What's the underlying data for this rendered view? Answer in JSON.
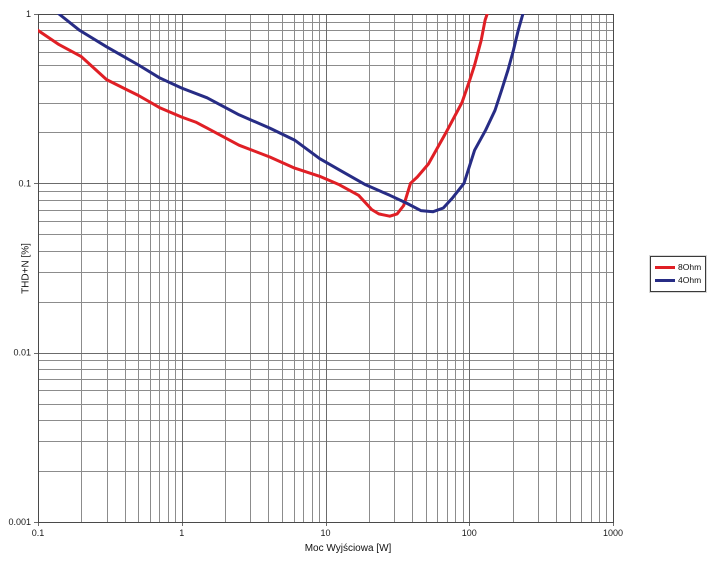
{
  "chart_data": {
    "type": "line",
    "title": "",
    "xlabel": "Moc Wyjściowa [W]",
    "ylabel": "THD+N [%]",
    "x_scale": "log",
    "y_scale": "log",
    "xlim": [
      0.1,
      1000
    ],
    "ylim": [
      0.001,
      1
    ],
    "grid": "major and minor log gridlines, gray, on",
    "legend_position": "right-center",
    "x_ticks": [
      {
        "v": 0.1,
        "label": "0.1"
      },
      {
        "v": 1,
        "label": "1"
      },
      {
        "v": 10,
        "label": "10"
      },
      {
        "v": 100,
        "label": "100"
      },
      {
        "v": 1000,
        "label": "1000"
      }
    ],
    "y_ticks": [
      {
        "v": 1,
        "label": "1"
      },
      {
        "v": 0.1,
        "label": "0.1"
      },
      {
        "v": 0.01,
        "label": "0.01"
      },
      {
        "v": 0.001,
        "label": "0.001"
      }
    ],
    "series": [
      {
        "name": "8Ohm",
        "color": "#e01f25",
        "points": [
          [
            0.1,
            0.8
          ],
          [
            0.14,
            0.66
          ],
          [
            0.2,
            0.56
          ],
          [
            0.3,
            0.41
          ],
          [
            0.5,
            0.33
          ],
          [
            0.7,
            0.28
          ],
          [
            1.0,
            0.246
          ],
          [
            1.25,
            0.23
          ],
          [
            1.5,
            0.212
          ],
          [
            2.5,
            0.168
          ],
          [
            4.1,
            0.143
          ],
          [
            6.1,
            0.123
          ],
          [
            9.1,
            0.11
          ],
          [
            12.5,
            0.098
          ],
          [
            17,
            0.085
          ],
          [
            21,
            0.07
          ],
          [
            23.5,
            0.066
          ],
          [
            28,
            0.064
          ],
          [
            31.5,
            0.066
          ],
          [
            35,
            0.074
          ],
          [
            39,
            0.1
          ],
          [
            43.5,
            0.109
          ],
          [
            52,
            0.13
          ],
          [
            69,
            0.2
          ],
          [
            89,
            0.3
          ],
          [
            101,
            0.41
          ],
          [
            109,
            0.5
          ],
          [
            121,
            0.7
          ],
          [
            129,
            0.92
          ],
          [
            136,
            1.05
          ]
        ]
      },
      {
        "name": "4Ohm",
        "color": "#272c85",
        "points": [
          [
            0.135,
            1.05
          ],
          [
            0.14,
            1.0
          ],
          [
            0.195,
            0.8
          ],
          [
            0.3,
            0.64
          ],
          [
            0.5,
            0.5
          ],
          [
            0.7,
            0.42
          ],
          [
            1.0,
            0.365
          ],
          [
            1.5,
            0.32
          ],
          [
            2.5,
            0.254
          ],
          [
            4.1,
            0.212
          ],
          [
            6.1,
            0.18
          ],
          [
            9.1,
            0.14
          ],
          [
            12.5,
            0.12
          ],
          [
            19,
            0.098
          ],
          [
            28,
            0.085
          ],
          [
            36.5,
            0.0765
          ],
          [
            46,
            0.069
          ],
          [
            56,
            0.068
          ],
          [
            66,
            0.0715
          ],
          [
            76,
            0.0815
          ],
          [
            92,
            0.1
          ],
          [
            109,
            0.157
          ],
          [
            130,
            0.206
          ],
          [
            151,
            0.27
          ],
          [
            168,
            0.355
          ],
          [
            186,
            0.467
          ],
          [
            203,
            0.613
          ],
          [
            219,
            0.8
          ],
          [
            240,
            1.05
          ]
        ]
      }
    ],
    "annotations": []
  },
  "colors": {
    "background": "#ffffff",
    "grid_minor": "#8c8c8c",
    "grid_major": "#6b6b6b",
    "plot_border": "#4a4a4a",
    "text": "#1a1a1a",
    "series_8ohm": "#e01f25",
    "series_4ohm": "#272c85"
  }
}
